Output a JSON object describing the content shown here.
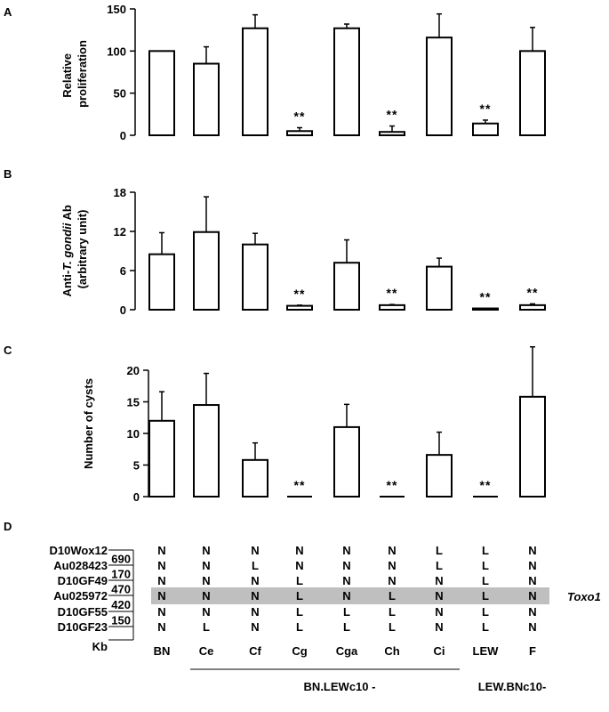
{
  "chart_data": [
    {
      "type": "bar",
      "panel_label": "A",
      "ylabel": "Relative proliferation",
      "ylim": [
        0,
        150
      ],
      "yticks": [
        "0",
        "50",
        "100",
        "150"
      ],
      "values": [
        100,
        85,
        127,
        5,
        127,
        4,
        116,
        14,
        100
      ],
      "errors": [
        0,
        20,
        16,
        4,
        5,
        7,
        28,
        4,
        28
      ],
      "significance": [
        "",
        "",
        "",
        "**",
        "",
        "**",
        "",
        "**",
        ""
      ]
    },
    {
      "type": "bar",
      "panel_label": "B",
      "ylabel_prefix": "Anti-",
      "ylabel_italic": "T. gondii",
      "ylabel_suffix": " Ab",
      "ylabel2": "(arbitrary unit)",
      "ylim": [
        0,
        18
      ],
      "yticks": [
        "0",
        "6",
        "12",
        "18"
      ],
      "values": [
        8.5,
        11.9,
        10.0,
        0.6,
        7.2,
        0.7,
        6.6,
        0.2,
        0.7
      ],
      "errors": [
        3.3,
        5.4,
        1.7,
        0.1,
        3.5,
        0.1,
        1.3,
        0,
        0.2
      ],
      "significance": [
        "",
        "",
        "",
        "**",
        "",
        "**",
        "",
        "**",
        "**"
      ]
    },
    {
      "type": "bar",
      "panel_label": "C",
      "ylabel": "Number of cysts",
      "ylim": [
        0,
        20
      ],
      "yticks": [
        "0",
        "5",
        "10",
        "15",
        "20"
      ],
      "values": [
        12,
        14.5,
        5.8,
        0,
        11,
        0,
        6.6,
        0,
        15.8
      ],
      "errors": [
        4.6,
        5.0,
        2.7,
        0,
        3.6,
        0,
        3.6,
        0,
        7.9
      ],
      "significance": [
        "",
        "",
        "",
        "**",
        "",
        "**",
        "",
        "**",
        ""
      ]
    }
  ],
  "genotype_panel": {
    "panel_label": "D",
    "markers": [
      "D10Wox12",
      "Au028423",
      "D10GF49",
      "Au025972",
      "D10GF55",
      "D10GF23"
    ],
    "distances_kb": [
      "690",
      "170",
      "470",
      "420",
      "150"
    ],
    "kb_label": "Kb",
    "strains": [
      "BN",
      "Ce",
      "Cf",
      "Cg",
      "Cga",
      "Ch",
      "Ci",
      "LEW",
      "F"
    ],
    "genotypes": [
      [
        "N",
        "N",
        "N",
        "N",
        "N",
        "N",
        "L",
        "L",
        "N"
      ],
      [
        "N",
        "N",
        "L",
        "N",
        "N",
        "N",
        "L",
        "L",
        "N"
      ],
      [
        "N",
        "N",
        "N",
        "L",
        "N",
        "N",
        "N",
        "L",
        "N"
      ],
      [
        "N",
        "N",
        "N",
        "L",
        "N",
        "L",
        "N",
        "L",
        "N"
      ],
      [
        "N",
        "N",
        "N",
        "L",
        "L",
        "L",
        "N",
        "L",
        "N"
      ],
      [
        "N",
        "L",
        "N",
        "L",
        "L",
        "L",
        "N",
        "L",
        "N"
      ]
    ],
    "highlight_row": 3,
    "highlight_label": "Toxo1",
    "group_labels": [
      "BN.LEWc10 -",
      "LEW.BNc10-"
    ],
    "colors": {
      "highlight": "#bfbfbf"
    }
  }
}
